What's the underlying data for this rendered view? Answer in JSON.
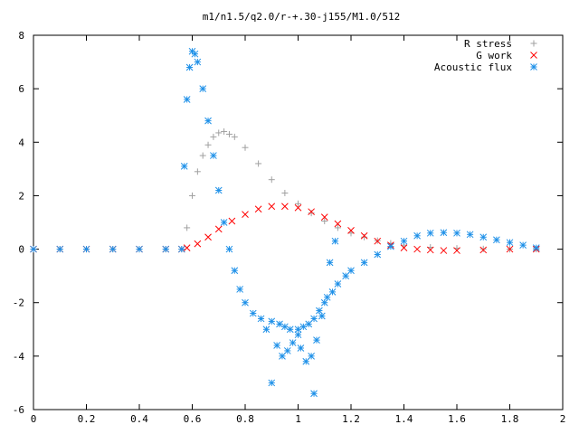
{
  "chart_data": {
    "type": "scatter",
    "title": "m1/n1.5/q2.0/r-+.30-j155/M1.0/512",
    "xlabel": "",
    "ylabel": "",
    "xlim": [
      0,
      2
    ],
    "ylim": [
      -6,
      8
    ],
    "x_ticks": [
      0,
      0.2,
      0.4,
      0.6,
      0.8,
      1,
      1.2,
      1.4,
      1.6,
      1.8,
      2
    ],
    "x_tick_labels": [
      "0",
      "0.2",
      "0.4",
      "0.6",
      "0.8",
      "1",
      "1.2",
      "1.4",
      "1.6",
      "1.8",
      "2"
    ],
    "y_ticks": [
      -6,
      -4,
      -2,
      0,
      2,
      4,
      6,
      8
    ],
    "y_tick_labels": [
      "-6",
      "-4",
      "-2",
      "0",
      "2",
      "4",
      "6",
      "8"
    ],
    "grid": false,
    "legend_position": "top-right",
    "series": [
      {
        "name": "R stress",
        "marker": "plus",
        "color": "#a0a0a0",
        "x": [
          0,
          0.1,
          0.2,
          0.3,
          0.4,
          0.5,
          0.56,
          0.58,
          0.6,
          0.62,
          0.64,
          0.66,
          0.68,
          0.7,
          0.72,
          0.74,
          0.76,
          0.8,
          0.85,
          0.9,
          0.95,
          1.0,
          1.05,
          1.1,
          1.15,
          1.2,
          1.25,
          1.3,
          1.35,
          1.4,
          1.5,
          1.6,
          1.7,
          1.8,
          1.9
        ],
        "y": [
          0,
          0,
          0,
          0,
          0,
          0,
          0,
          0.8,
          2.0,
          2.9,
          3.5,
          3.9,
          4.2,
          4.35,
          4.4,
          4.3,
          4.2,
          3.8,
          3.2,
          2.6,
          2.1,
          1.7,
          1.35,
          1.05,
          0.8,
          0.6,
          0.45,
          0.32,
          0.22,
          0.15,
          0.07,
          0.03,
          0.01,
          0,
          0
        ]
      },
      {
        "name": "G work",
        "marker": "cross",
        "color": "#ff0000",
        "x": [
          0,
          0.1,
          0.2,
          0.3,
          0.4,
          0.5,
          0.56,
          0.58,
          0.62,
          0.66,
          0.7,
          0.75,
          0.8,
          0.85,
          0.9,
          0.95,
          1.0,
          1.05,
          1.1,
          1.15,
          1.2,
          1.25,
          1.3,
          1.35,
          1.4,
          1.45,
          1.5,
          1.55,
          1.6,
          1.7,
          1.8,
          1.9
        ],
        "y": [
          0,
          0,
          0,
          0,
          0,
          0,
          0,
          0.05,
          0.2,
          0.45,
          0.75,
          1.05,
          1.3,
          1.5,
          1.6,
          1.6,
          1.55,
          1.4,
          1.2,
          0.95,
          0.7,
          0.5,
          0.3,
          0.15,
          0.05,
          0,
          -0.03,
          -0.05,
          -0.05,
          -0.03,
          0,
          0
        ]
      },
      {
        "name": "Acoustic flux",
        "marker": "asterisk",
        "color": "#1e90e8",
        "x": [
          0,
          0.1,
          0.2,
          0.3,
          0.4,
          0.5,
          0.56,
          0.57,
          0.58,
          0.59,
          0.6,
          0.61,
          0.62,
          0.64,
          0.66,
          0.68,
          0.7,
          0.72,
          0.74,
          0.76,
          0.78,
          0.8,
          0.83,
          0.86,
          0.9,
          0.93,
          0.95,
          0.97,
          1.0,
          1.02,
          1.04,
          1.06,
          1.08,
          1.1,
          1.13,
          1.15,
          1.18,
          1.2,
          1.25,
          1.3,
          1.35,
          1.4,
          1.45,
          1.5,
          1.55,
          1.6,
          1.65,
          1.7,
          1.75,
          1.8,
          1.85,
          1.9,
          0.92,
          0.94,
          0.96,
          0.98,
          1.0,
          1.01,
          1.03,
          1.05,
          1.07,
          1.09,
          1.11,
          1.06,
          1.12,
          1.14,
          0.88,
          0.9
        ],
        "y": [
          0,
          0,
          0,
          0,
          0,
          0,
          0,
          3.1,
          5.6,
          6.8,
          7.4,
          7.3,
          7.0,
          6.0,
          4.8,
          3.5,
          2.2,
          1.0,
          0.0,
          -0.8,
          -1.5,
          -2.0,
          -2.4,
          -2.6,
          -2.7,
          -2.8,
          -2.9,
          -3.0,
          -3.0,
          -2.9,
          -2.8,
          -2.6,
          -2.3,
          -2.0,
          -1.6,
          -1.3,
          -1.0,
          -0.8,
          -0.5,
          -0.2,
          0.1,
          0.3,
          0.5,
          0.6,
          0.62,
          0.6,
          0.55,
          0.45,
          0.35,
          0.25,
          0.15,
          0.05,
          -3.6,
          -4.0,
          -3.8,
          -3.5,
          -3.2,
          -3.7,
          -4.2,
          -4.0,
          -3.4,
          -2.5,
          -1.8,
          -5.4,
          -0.5,
          0.3,
          -3.0,
          -5.0
        ]
      }
    ]
  }
}
